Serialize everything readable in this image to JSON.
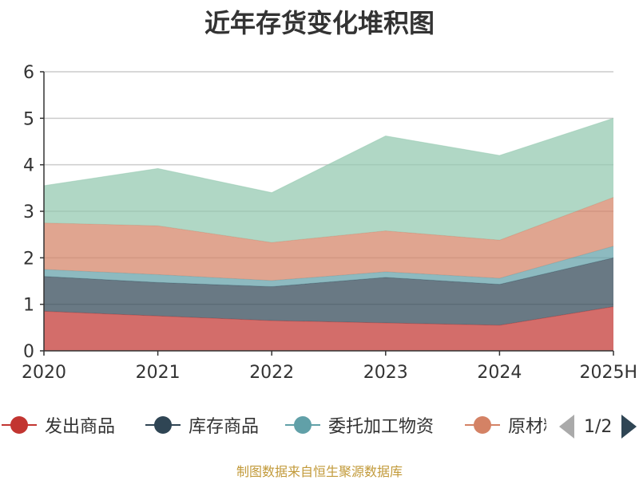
{
  "chart_data": {
    "type": "area",
    "stacked": true,
    "title": "近年存货变化堆积图",
    "categories": [
      "2020",
      "2021",
      "2022",
      "2023",
      "2024",
      "2025H"
    ],
    "ylim": [
      0,
      6
    ],
    "yticks": [
      "0",
      "1",
      "2",
      "3",
      "4",
      "5",
      "6"
    ],
    "grid": true,
    "series": [
      {
        "name": "发出商品",
        "color": "#c23531",
        "values": [
          0.85,
          0.75,
          0.65,
          0.6,
          0.55,
          0.95
        ]
      },
      {
        "name": "库存商品",
        "color": "#2f4554",
        "values": [
          0.75,
          0.72,
          0.73,
          0.98,
          0.88,
          1.05
        ]
      },
      {
        "name": "委托加工物资",
        "color": "#61a0a8",
        "values": [
          0.15,
          0.17,
          0.13,
          0.12,
          0.13,
          0.25
        ]
      },
      {
        "name": "原材料",
        "color": "#d48265",
        "values": [
          1.0,
          1.05,
          0.82,
          0.88,
          0.82,
          1.05
        ]
      },
      {
        "name": "",
        "color": "#91c7ae",
        "values": [
          0.8,
          1.23,
          1.07,
          2.04,
          1.82,
          1.7
        ]
      }
    ]
  },
  "legend": {
    "items": [
      "发出商品",
      "库存商品",
      "委托加工物资",
      "原材料"
    ],
    "pager_text": "1/2"
  },
  "ylabel_fragment": "",
  "source_note": "制图数据来自恒生聚源数据库"
}
